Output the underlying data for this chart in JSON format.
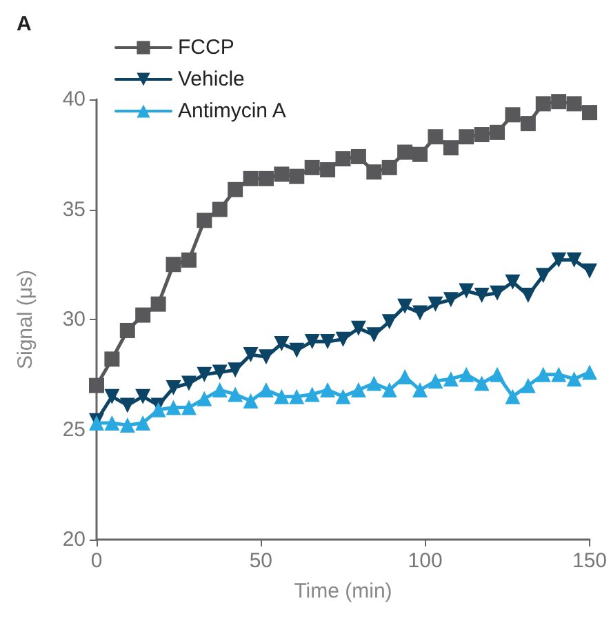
{
  "chart_data": {
    "type": "line",
    "annotations": [
      "A"
    ],
    "xlabel": "Time (min)",
    "ylabel": "Signal (μs)",
    "x": [
      0,
      4.7,
      9.4,
      14.1,
      18.8,
      23.4,
      28.1,
      32.8,
      37.5,
      42.2,
      46.9,
      51.6,
      56.3,
      60.9,
      65.6,
      70.3,
      75,
      79.7,
      84.4,
      89.1,
      93.8,
      98.4,
      103.1,
      107.8,
      112.5,
      117.2,
      121.9,
      126.6,
      131.3,
      135.9,
      140.6,
      145.3,
      150
    ],
    "series": [
      {
        "name": "FCCP",
        "color": "#58585a",
        "marker": "square",
        "values": [
          27.0,
          28.2,
          29.5,
          30.2,
          30.7,
          32.5,
          32.7,
          34.5,
          35.0,
          35.9,
          36.4,
          36.4,
          36.6,
          36.5,
          36.9,
          36.8,
          37.3,
          37.4,
          36.7,
          36.9,
          37.6,
          37.5,
          38.3,
          37.8,
          38.3,
          38.4,
          38.5,
          39.3,
          38.9,
          39.8,
          39.9,
          39.8,
          39.4
        ]
      },
      {
        "name": "Vehicle",
        "color": "#0c4466",
        "marker": "triangle_down",
        "values": [
          25.4,
          26.5,
          26.1,
          26.5,
          26.1,
          26.9,
          27.1,
          27.5,
          27.6,
          27.7,
          28.4,
          28.3,
          28.9,
          28.6,
          29.0,
          29.0,
          29.1,
          29.6,
          29.3,
          29.9,
          30.6,
          30.3,
          30.7,
          30.9,
          31.3,
          31.1,
          31.2,
          31.7,
          31.1,
          32.0,
          32.7,
          32.7,
          32.2
        ]
      },
      {
        "name": "Antimycin A",
        "color": "#2aa9e0",
        "marker": "triangle",
        "values": [
          25.3,
          25.3,
          25.2,
          25.3,
          25.9,
          26.0,
          26.0,
          26.4,
          26.8,
          26.6,
          26.3,
          26.8,
          26.5,
          26.5,
          26.6,
          26.8,
          26.5,
          26.8,
          27.1,
          26.8,
          27.4,
          26.8,
          27.2,
          27.3,
          27.5,
          27.1,
          27.5,
          26.5,
          27.0,
          27.5,
          27.5,
          27.3,
          27.6
        ]
      }
    ],
    "xlim": [
      0,
      150
    ],
    "xticks": [
      0,
      50,
      100,
      150
    ],
    "ylim": [
      20,
      40
    ],
    "yticks": [
      20,
      25,
      30,
      35,
      40
    ],
    "grid": false,
    "legend": "top left",
    "line_style": "solid"
  }
}
